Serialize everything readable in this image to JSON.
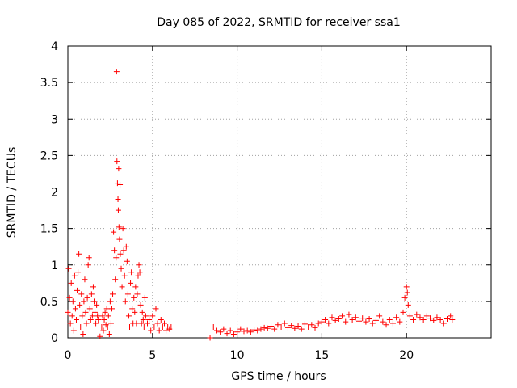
{
  "chart_data": {
    "type": "scatter",
    "title": "Day 085 of 2022, SRMTID for receiver ssa1",
    "xlabel": "GPS time / hours",
    "ylabel": "SRMTID / TECUs",
    "xlim": [
      0,
      25
    ],
    "ylim": [
      0,
      4
    ],
    "xticks": [
      0,
      5,
      10,
      15,
      20
    ],
    "xtick_labels": [
      "0",
      "5",
      "10",
      "15",
      "20"
    ],
    "yticks": [
      0,
      0.5,
      1,
      1.5,
      2,
      2.5,
      3,
      3.5,
      4
    ],
    "ytick_labels": [
      "0",
      "0.5",
      "1",
      "1.5",
      "2",
      "2.5",
      "3",
      "3.5",
      "4"
    ],
    "grid": true,
    "marker": "+",
    "series": [
      {
        "name": "SRMTID ssa1",
        "color": "#ff0000",
        "points": [
          [
            0.0,
            0.35
          ],
          [
            0.05,
            0.95
          ],
          [
            0.1,
            0.55
          ],
          [
            0.15,
            0.2
          ],
          [
            0.2,
            0.75
          ],
          [
            0.25,
            0.3
          ],
          [
            0.3,
            0.5
          ],
          [
            0.35,
            0.1
          ],
          [
            0.4,
            0.85
          ],
          [
            0.45,
            0.4
          ],
          [
            0.5,
            0.25
          ],
          [
            0.55,
            0.65
          ],
          [
            0.6,
            0.9
          ],
          [
            0.65,
            1.15
          ],
          [
            0.7,
            0.45
          ],
          [
            0.75,
            0.15
          ],
          [
            0.8,
            0.6
          ],
          [
            0.85,
            0.3
          ],
          [
            0.9,
            0.05
          ],
          [
            0.95,
            0.5
          ],
          [
            1.0,
            0.8
          ],
          [
            1.05,
            0.35
          ],
          [
            1.1,
            0.2
          ],
          [
            1.15,
            0.55
          ],
          [
            1.2,
            1.0
          ],
          [
            1.25,
            1.1
          ],
          [
            1.3,
            0.4
          ],
          [
            1.35,
            0.25
          ],
          [
            1.4,
            0.6
          ],
          [
            1.45,
            0.3
          ],
          [
            1.5,
            0.7
          ],
          [
            1.55,
            0.5
          ],
          [
            1.6,
            0.35
          ],
          [
            1.65,
            0.2
          ],
          [
            1.7,
            0.45
          ],
          [
            1.75,
            0.3
          ],
          [
            1.8,
            0.25
          ],
          [
            1.9,
            0.02
          ],
          [
            2.0,
            0.15
          ],
          [
            2.05,
            0.3
          ],
          [
            2.1,
            0.1
          ],
          [
            2.15,
            0.25
          ],
          [
            2.2,
            0.35
          ],
          [
            2.25,
            0.18
          ],
          [
            2.3,
            0.4
          ],
          [
            2.35,
            0.15
          ],
          [
            2.4,
            0.3
          ],
          [
            2.45,
            0.05
          ],
          [
            2.5,
            0.5
          ],
          [
            2.55,
            0.2
          ],
          [
            2.6,
            0.4
          ],
          [
            2.65,
            0.6
          ],
          [
            2.7,
            1.45
          ],
          [
            2.75,
            1.2
          ],
          [
            2.8,
            0.8
          ],
          [
            2.85,
            1.1
          ],
          [
            2.88,
            3.65
          ],
          [
            2.9,
            2.42
          ],
          [
            2.93,
            2.12
          ],
          [
            2.96,
            1.9
          ],
          [
            2.98,
            1.75
          ],
          [
            3.0,
            2.32
          ],
          [
            3.02,
            1.52
          ],
          [
            3.05,
            1.35
          ],
          [
            3.08,
            2.1
          ],
          [
            3.1,
            1.15
          ],
          [
            3.15,
            0.95
          ],
          [
            3.2,
            0.7
          ],
          [
            3.25,
            1.5
          ],
          [
            3.3,
            1.2
          ],
          [
            3.35,
            0.85
          ],
          [
            3.4,
            0.5
          ],
          [
            3.45,
            1.25
          ],
          [
            3.5,
            1.05
          ],
          [
            3.55,
            0.6
          ],
          [
            3.6,
            0.3
          ],
          [
            3.65,
            0.15
          ],
          [
            3.7,
            0.75
          ],
          [
            3.75,
            0.9
          ],
          [
            3.8,
            0.4
          ],
          [
            3.85,
            0.2
          ],
          [
            3.9,
            0.55
          ],
          [
            3.95,
            0.35
          ],
          [
            4.0,
            0.7
          ],
          [
            4.05,
            0.2
          ],
          [
            4.1,
            0.6
          ],
          [
            4.15,
            0.85
          ],
          [
            4.2,
            1.0
          ],
          [
            4.25,
            0.9
          ],
          [
            4.3,
            0.45
          ],
          [
            4.35,
            0.2
          ],
          [
            4.4,
            0.35
          ],
          [
            4.45,
            0.25
          ],
          [
            4.5,
            0.15
          ],
          [
            4.55,
            0.55
          ],
          [
            4.6,
            0.3
          ],
          [
            4.7,
            0.2
          ],
          [
            4.8,
            0.25
          ],
          [
            4.9,
            0.1
          ],
          [
            5.0,
            0.3
          ],
          [
            5.1,
            0.15
          ],
          [
            5.2,
            0.4
          ],
          [
            5.3,
            0.2
          ],
          [
            5.4,
            0.1
          ],
          [
            5.5,
            0.25
          ],
          [
            5.6,
            0.15
          ],
          [
            5.7,
            0.2
          ],
          [
            5.8,
            0.1
          ],
          [
            5.9,
            0.15
          ],
          [
            6.0,
            0.12
          ],
          [
            6.1,
            0.15
          ],
          [
            8.4,
            0.0
          ],
          [
            8.6,
            0.15
          ],
          [
            8.8,
            0.1
          ],
          [
            9.0,
            0.08
          ],
          [
            9.2,
            0.12
          ],
          [
            9.4,
            0.06
          ],
          [
            9.6,
            0.1
          ],
          [
            9.8,
            0.05
          ],
          [
            10.0,
            0.08
          ],
          [
            10.2,
            0.12
          ],
          [
            10.4,
            0.09
          ],
          [
            10.6,
            0.1
          ],
          [
            10.8,
            0.08
          ],
          [
            11.0,
            0.11
          ],
          [
            11.2,
            0.1
          ],
          [
            11.4,
            0.12
          ],
          [
            11.6,
            0.14
          ],
          [
            11.8,
            0.13
          ],
          [
            12.0,
            0.16
          ],
          [
            12.2,
            0.12
          ],
          [
            12.4,
            0.18
          ],
          [
            12.6,
            0.15
          ],
          [
            12.8,
            0.2
          ],
          [
            13.0,
            0.14
          ],
          [
            13.2,
            0.17
          ],
          [
            13.4,
            0.13
          ],
          [
            13.6,
            0.16
          ],
          [
            13.8,
            0.12
          ],
          [
            14.0,
            0.19
          ],
          [
            14.2,
            0.15
          ],
          [
            14.4,
            0.18
          ],
          [
            14.6,
            0.14
          ],
          [
            14.8,
            0.2
          ],
          [
            15.0,
            0.22
          ],
          [
            15.2,
            0.25
          ],
          [
            15.4,
            0.2
          ],
          [
            15.6,
            0.28
          ],
          [
            15.8,
            0.24
          ],
          [
            16.0,
            0.26
          ],
          [
            16.2,
            0.3
          ],
          [
            16.4,
            0.22
          ],
          [
            16.6,
            0.32
          ],
          [
            16.8,
            0.25
          ],
          [
            17.0,
            0.28
          ],
          [
            17.2,
            0.23
          ],
          [
            17.4,
            0.27
          ],
          [
            17.6,
            0.22
          ],
          [
            17.8,
            0.26
          ],
          [
            18.0,
            0.2
          ],
          [
            18.2,
            0.24
          ],
          [
            18.4,
            0.3
          ],
          [
            18.6,
            0.22
          ],
          [
            18.8,
            0.18
          ],
          [
            19.0,
            0.25
          ],
          [
            19.2,
            0.2
          ],
          [
            19.4,
            0.28
          ],
          [
            19.6,
            0.22
          ],
          [
            19.8,
            0.35
          ],
          [
            19.9,
            0.55
          ],
          [
            20.0,
            0.7
          ],
          [
            20.05,
            0.62
          ],
          [
            20.1,
            0.45
          ],
          [
            20.2,
            0.3
          ],
          [
            20.4,
            0.25
          ],
          [
            20.6,
            0.32
          ],
          [
            20.8,
            0.28
          ],
          [
            21.0,
            0.25
          ],
          [
            21.2,
            0.3
          ],
          [
            21.4,
            0.27
          ],
          [
            21.6,
            0.24
          ],
          [
            21.8,
            0.28
          ],
          [
            22.0,
            0.25
          ],
          [
            22.2,
            0.2
          ],
          [
            22.4,
            0.26
          ],
          [
            22.6,
            0.3
          ],
          [
            22.7,
            0.25
          ]
        ]
      }
    ]
  }
}
